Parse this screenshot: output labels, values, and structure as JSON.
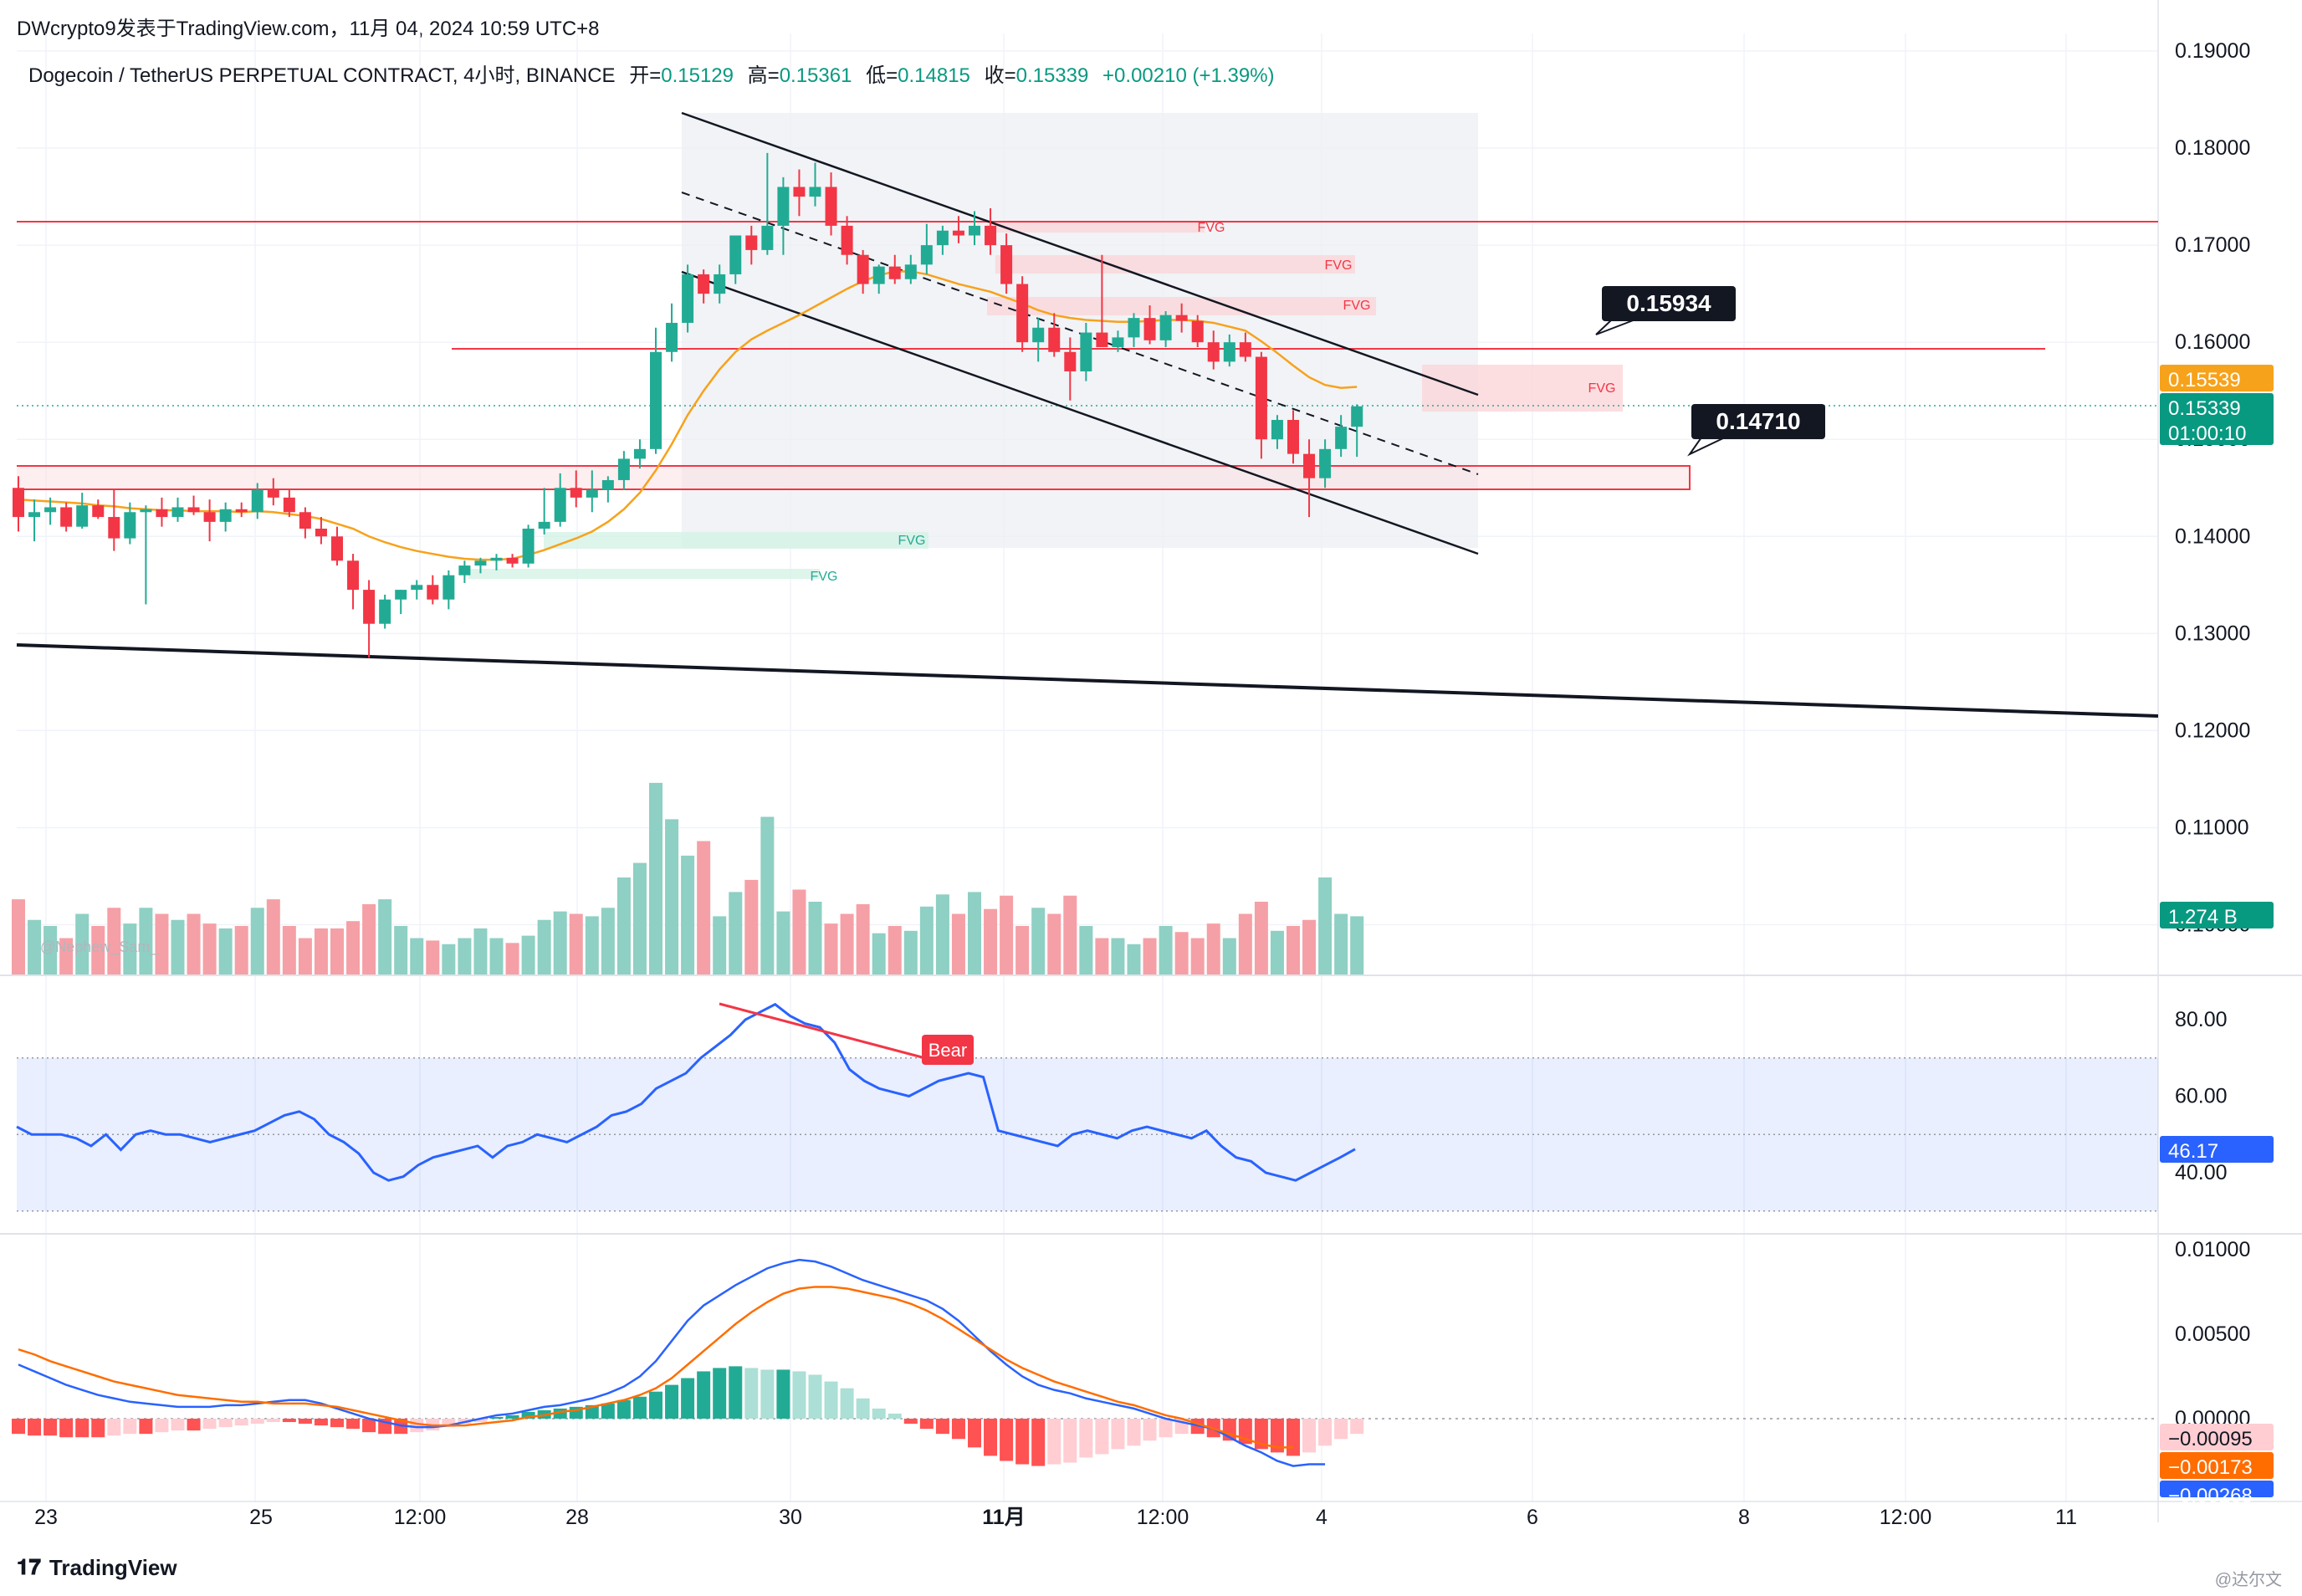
{
  "header": {
    "publisher_line": "DWcrypto9发表于TradingView.com，11月 04, 2024 10:59 UTC+8"
  },
  "legend": {
    "symbol": "Dogecoin / TetherUS PERPETUAL CONTRACT, 4小时, BINANCE",
    "open_label": "开=",
    "open_value": "0.15129",
    "high_label": "高=",
    "high_value": "0.15361",
    "low_label": "低=",
    "low_value": "0.14815",
    "close_label": "收=",
    "close_value": "0.15339",
    "change": "+0.00210 (+1.39%)"
  },
  "footer": {
    "logo_text": "TradingView",
    "watermark": "@达尔文"
  },
  "colors": {
    "up": "#22ab94",
    "down": "#f23645",
    "volume_up": "#8ed0c3",
    "volume_down": "#f5a0a6",
    "ma": "#f7a21b",
    "rsi": "#2962ff",
    "macd_fast": "#2962ff",
    "macd_signal": "#ff6d00",
    "resistance_line": "#f23645",
    "channel": "#131722",
    "fvg_red": "#fbd6d9",
    "fvg_green": "#d4f2e6",
    "current_price_badge": "#089981",
    "ma_badge": "#f7a21b"
  },
  "price_axis": {
    "ticks": [
      "0.19000",
      "0.18000",
      "0.17000",
      "0.16000",
      "0.15000",
      "0.14000",
      "0.13000",
      "0.12000",
      "0.11000",
      "0.10000"
    ],
    "price_badge": "0.15339",
    "countdown": "01:00:10",
    "ma_badge": "0.15539",
    "volume_badge": "1.274 B"
  },
  "annotations": {
    "callout_upper": "0.15934",
    "callout_lower": "0.14710",
    "fvg_label": "FVG",
    "bear_label": "Bear",
    "author_watermark": "@Nephew_Sam_"
  },
  "time_axis": {
    "labels": [
      "23",
      "25",
      "12:00",
      "28",
      "30",
      "11月",
      "12:00",
      "4",
      "6",
      "8",
      "12:00",
      "11"
    ]
  },
  "rsi_axis": {
    "ticks": [
      "80.00",
      "60.00",
      "40.00"
    ],
    "value_badge": "46.17"
  },
  "macd_axis": {
    "ticks": [
      "0.01000",
      "0.00500",
      "0.00000"
    ],
    "badge_1": "−0.00095",
    "badge_2": "−0.00173",
    "badge_3": "−0.00268"
  },
  "chart_data": [
    {
      "type": "candlestick",
      "title": "Dogecoin / TetherUS PERPETUAL CONTRACT, 4小时, BINANCE",
      "ylim": [
        0.1,
        0.19
      ],
      "x_category_labels": [
        "23",
        "25",
        "12:00",
        "28",
        "30",
        "11月",
        "12:00",
        "4"
      ],
      "candles": [
        {
          "o": 0.145,
          "h": 0.1462,
          "l": 0.1405,
          "c": 0.142
        },
        {
          "o": 0.142,
          "h": 0.1438,
          "l": 0.1395,
          "c": 0.1425
        },
        {
          "o": 0.1425,
          "h": 0.144,
          "l": 0.1412,
          "c": 0.143
        },
        {
          "o": 0.143,
          "h": 0.1435,
          "l": 0.1405,
          "c": 0.141
        },
        {
          "o": 0.141,
          "h": 0.1445,
          "l": 0.1408,
          "c": 0.1432
        },
        {
          "o": 0.1432,
          "h": 0.1438,
          "l": 0.1418,
          "c": 0.142
        },
        {
          "o": 0.142,
          "h": 0.1448,
          "l": 0.1385,
          "c": 0.1398
        },
        {
          "o": 0.1398,
          "h": 0.1435,
          "l": 0.1392,
          "c": 0.1425
        },
        {
          "o": 0.1425,
          "h": 0.1432,
          "l": 0.133,
          "c": 0.1428
        },
        {
          "o": 0.1428,
          "h": 0.144,
          "l": 0.141,
          "c": 0.142
        },
        {
          "o": 0.142,
          "h": 0.144,
          "l": 0.1415,
          "c": 0.143
        },
        {
          "o": 0.143,
          "h": 0.1442,
          "l": 0.1422,
          "c": 0.1425
        },
        {
          "o": 0.1425,
          "h": 0.1438,
          "l": 0.1395,
          "c": 0.1415
        },
        {
          "o": 0.1415,
          "h": 0.1435,
          "l": 0.1405,
          "c": 0.1428
        },
        {
          "o": 0.1428,
          "h": 0.1435,
          "l": 0.142,
          "c": 0.1425
        },
        {
          "o": 0.1425,
          "h": 0.1455,
          "l": 0.1418,
          "c": 0.1448
        },
        {
          "o": 0.1448,
          "h": 0.146,
          "l": 0.1432,
          "c": 0.144
        },
        {
          "o": 0.144,
          "h": 0.1448,
          "l": 0.142,
          "c": 0.1425
        },
        {
          "o": 0.1425,
          "h": 0.143,
          "l": 0.1398,
          "c": 0.1408
        },
        {
          "o": 0.1408,
          "h": 0.142,
          "l": 0.1392,
          "c": 0.14
        },
        {
          "o": 0.14,
          "h": 0.141,
          "l": 0.137,
          "c": 0.1375
        },
        {
          "o": 0.1375,
          "h": 0.1382,
          "l": 0.1325,
          "c": 0.1345
        },
        {
          "o": 0.1345,
          "h": 0.1355,
          "l": 0.1275,
          "c": 0.131
        },
        {
          "o": 0.131,
          "h": 0.134,
          "l": 0.1305,
          "c": 0.1335
        },
        {
          "o": 0.1335,
          "h": 0.1345,
          "l": 0.132,
          "c": 0.1345
        },
        {
          "o": 0.1345,
          "h": 0.1355,
          "l": 0.1335,
          "c": 0.135
        },
        {
          "o": 0.135,
          "h": 0.136,
          "l": 0.133,
          "c": 0.1335
        },
        {
          "o": 0.1335,
          "h": 0.1365,
          "l": 0.1325,
          "c": 0.136
        },
        {
          "o": 0.136,
          "h": 0.1375,
          "l": 0.1352,
          "c": 0.137
        },
        {
          "o": 0.137,
          "h": 0.1378,
          "l": 0.1362,
          "c": 0.1375
        },
        {
          "o": 0.1375,
          "h": 0.1382,
          "l": 0.1365,
          "c": 0.1378
        },
        {
          "o": 0.1378,
          "h": 0.1382,
          "l": 0.1368,
          "c": 0.1372
        },
        {
          "o": 0.1372,
          "h": 0.1412,
          "l": 0.1368,
          "c": 0.1408
        },
        {
          "o": 0.1408,
          "h": 0.145,
          "l": 0.1402,
          "c": 0.1415
        },
        {
          "o": 0.1415,
          "h": 0.1465,
          "l": 0.141,
          "c": 0.145
        },
        {
          "o": 0.145,
          "h": 0.1468,
          "l": 0.143,
          "c": 0.144
        },
        {
          "o": 0.144,
          "h": 0.1468,
          "l": 0.1425,
          "c": 0.1448
        },
        {
          "o": 0.1448,
          "h": 0.1462,
          "l": 0.1435,
          "c": 0.1458
        },
        {
          "o": 0.1458,
          "h": 0.1488,
          "l": 0.1448,
          "c": 0.148
        },
        {
          "o": 0.148,
          "h": 0.15,
          "l": 0.147,
          "c": 0.149
        },
        {
          "o": 0.149,
          "h": 0.1615,
          "l": 0.1485,
          "c": 0.159
        },
        {
          "o": 0.159,
          "h": 0.164,
          "l": 0.158,
          "c": 0.162
        },
        {
          "o": 0.162,
          "h": 0.168,
          "l": 0.161,
          "c": 0.167
        },
        {
          "o": 0.167,
          "h": 0.1675,
          "l": 0.164,
          "c": 0.165
        },
        {
          "o": 0.165,
          "h": 0.168,
          "l": 0.164,
          "c": 0.167
        },
        {
          "o": 0.167,
          "h": 0.171,
          "l": 0.166,
          "c": 0.171
        },
        {
          "o": 0.171,
          "h": 0.172,
          "l": 0.168,
          "c": 0.1695
        },
        {
          "o": 0.1695,
          "h": 0.1795,
          "l": 0.169,
          "c": 0.172
        },
        {
          "o": 0.172,
          "h": 0.177,
          "l": 0.169,
          "c": 0.176
        },
        {
          "o": 0.176,
          "h": 0.1778,
          "l": 0.173,
          "c": 0.175
        },
        {
          "o": 0.175,
          "h": 0.1785,
          "l": 0.174,
          "c": 0.176
        },
        {
          "o": 0.176,
          "h": 0.1775,
          "l": 0.171,
          "c": 0.172
        },
        {
          "o": 0.172,
          "h": 0.173,
          "l": 0.168,
          "c": 0.169
        },
        {
          "o": 0.169,
          "h": 0.1695,
          "l": 0.165,
          "c": 0.166
        },
        {
          "o": 0.166,
          "h": 0.168,
          "l": 0.165,
          "c": 0.1678
        },
        {
          "o": 0.1678,
          "h": 0.169,
          "l": 0.166,
          "c": 0.1665
        },
        {
          "o": 0.1665,
          "h": 0.169,
          "l": 0.166,
          "c": 0.168
        },
        {
          "o": 0.168,
          "h": 0.1722,
          "l": 0.167,
          "c": 0.17
        },
        {
          "o": 0.17,
          "h": 0.172,
          "l": 0.169,
          "c": 0.1715
        },
        {
          "o": 0.1715,
          "h": 0.173,
          "l": 0.1702,
          "c": 0.171
        },
        {
          "o": 0.171,
          "h": 0.1735,
          "l": 0.17,
          "c": 0.172
        },
        {
          "o": 0.172,
          "h": 0.1738,
          "l": 0.169,
          "c": 0.17
        },
        {
          "o": 0.17,
          "h": 0.1712,
          "l": 0.165,
          "c": 0.166
        },
        {
          "o": 0.166,
          "h": 0.1668,
          "l": 0.159,
          "c": 0.16
        },
        {
          "o": 0.16,
          "h": 0.1625,
          "l": 0.158,
          "c": 0.1615
        },
        {
          "o": 0.1615,
          "h": 0.163,
          "l": 0.1585,
          "c": 0.159
        },
        {
          "o": 0.159,
          "h": 0.1605,
          "l": 0.154,
          "c": 0.157
        },
        {
          "o": 0.157,
          "h": 0.162,
          "l": 0.156,
          "c": 0.161
        },
        {
          "o": 0.161,
          "h": 0.169,
          "l": 0.1595,
          "c": 0.1595
        },
        {
          "o": 0.1595,
          "h": 0.1612,
          "l": 0.159,
          "c": 0.1605
        },
        {
          "o": 0.1605,
          "h": 0.163,
          "l": 0.1595,
          "c": 0.1625
        },
        {
          "o": 0.1625,
          "h": 0.1638,
          "l": 0.1598,
          "c": 0.1602
        },
        {
          "o": 0.1602,
          "h": 0.1632,
          "l": 0.1595,
          "c": 0.1628
        },
        {
          "o": 0.1628,
          "h": 0.164,
          "l": 0.161,
          "c": 0.1622
        },
        {
          "o": 0.1622,
          "h": 0.1628,
          "l": 0.1595,
          "c": 0.16
        },
        {
          "o": 0.16,
          "h": 0.1612,
          "l": 0.1572,
          "c": 0.158
        },
        {
          "o": 0.158,
          "h": 0.1608,
          "l": 0.1575,
          "c": 0.16
        },
        {
          "o": 0.16,
          "h": 0.161,
          "l": 0.158,
          "c": 0.1585
        },
        {
          "o": 0.1585,
          "h": 0.159,
          "l": 0.148,
          "c": 0.15
        },
        {
          "o": 0.15,
          "h": 0.1525,
          "l": 0.149,
          "c": 0.152
        },
        {
          "o": 0.152,
          "h": 0.153,
          "l": 0.1475,
          "c": 0.1485
        },
        {
          "o": 0.1485,
          "h": 0.15,
          "l": 0.142,
          "c": 0.146
        },
        {
          "o": 0.146,
          "h": 0.15,
          "l": 0.145,
          "c": 0.149
        },
        {
          "o": 0.149,
          "h": 0.1525,
          "l": 0.1482,
          "c": 0.1513
        },
        {
          "o": 0.1513,
          "h": 0.1536,
          "l": 0.1482,
          "c": 0.1534
        }
      ],
      "ma": [
        0.1438,
        0.1437,
        0.1436,
        0.1435,
        0.1434,
        0.1432,
        0.1431,
        0.1429,
        0.1428,
        0.1427,
        0.1427,
        0.1426,
        0.1426,
        0.1426,
        0.1425,
        0.1426,
        0.1425,
        0.1423,
        0.1421,
        0.1418,
        0.1413,
        0.1408,
        0.14,
        0.1394,
        0.1389,
        0.1385,
        0.1382,
        0.1379,
        0.1377,
        0.1376,
        0.1376,
        0.1377,
        0.1381,
        0.1386,
        0.1392,
        0.1398,
        0.1405,
        0.1415,
        0.1428,
        0.1445,
        0.1468,
        0.1495,
        0.1525,
        0.155,
        0.1572,
        0.159,
        0.1603,
        0.1612,
        0.162,
        0.1628,
        0.1637,
        0.1646,
        0.1655,
        0.1663,
        0.1669,
        0.1673,
        0.1673,
        0.167,
        0.1665,
        0.166,
        0.1656,
        0.1652,
        0.1646,
        0.164,
        0.1633,
        0.1628,
        0.1625,
        0.1623,
        0.1622,
        0.1621,
        0.1621,
        0.1622,
        0.1623,
        0.1623,
        0.1622,
        0.162,
        0.1616,
        0.1612,
        0.1601,
        0.1589,
        0.1576,
        0.1564,
        0.1556,
        0.1553,
        0.1554
      ],
      "volume_direction": "up/down matches candle",
      "annotations": [
        "0.15934",
        "0.14710",
        "FVG",
        "FVG",
        "FVG",
        "FVG",
        "FVG",
        "FVG"
      ]
    },
    {
      "type": "line",
      "title": "RSI",
      "ylim": [
        20,
        90
      ],
      "bands": [
        30,
        50,
        70
      ],
      "values": [
        52,
        50,
        50,
        50,
        49,
        47,
        50,
        46,
        50,
        51,
        50,
        50,
        49,
        48,
        49,
        50,
        51,
        53,
        55,
        56,
        54,
        50,
        48,
        45,
        40,
        38,
        39,
        42,
        44,
        45,
        46,
        47,
        44,
        47,
        48,
        50,
        49,
        48,
        50,
        52,
        55,
        56,
        58,
        62,
        64,
        66,
        70,
        73,
        76,
        80,
        82,
        84,
        81,
        79,
        78,
        74,
        67,
        64,
        62,
        61,
        60,
        62,
        64,
        65,
        66,
        65,
        51,
        50,
        49,
        48,
        47,
        50,
        51,
        50,
        49,
        51,
        52,
        51,
        50,
        49,
        51,
        47,
        44,
        43,
        40,
        39,
        38,
        40,
        42,
        44,
        46.17
      ],
      "divergence_label": "Bear"
    },
    {
      "type": "bar",
      "title": "MACD",
      "ylim": [
        -0.00268,
        0.0104
      ],
      "histogram": [
        -0.0009,
        -0.001,
        -0.001,
        -0.0011,
        -0.0011,
        -0.0011,
        -0.001,
        -0.0009,
        -0.0009,
        -0.0008,
        -0.0007,
        -0.0007,
        -0.0006,
        -0.0005,
        -0.0004,
        -0.0003,
        -0.0002,
        -0.0002,
        -0.0003,
        -0.0004,
        -0.0005,
        -0.0006,
        -0.0008,
        -0.0009,
        -0.0009,
        -0.0008,
        -0.0007,
        -0.0005,
        -0.0003,
        -0.0002,
        0.0001,
        0.0002,
        0.0004,
        0.0005,
        0.0006,
        0.0007,
        0.0008,
        0.0009,
        0.0011,
        0.0013,
        0.0016,
        0.002,
        0.0024,
        0.0028,
        0.003,
        0.0031,
        0.003,
        0.0029,
        0.0029,
        0.0028,
        0.0026,
        0.0022,
        0.0018,
        0.0012,
        0.0006,
        0.0003,
        -0.0003,
        -0.0006,
        -0.0009,
        -0.0012,
        -0.0017,
        -0.0022,
        -0.0025,
        -0.0027,
        -0.0028,
        -0.0027,
        -0.0026,
        -0.0023,
        -0.0021,
        -0.0018,
        -0.0016,
        -0.0013,
        -0.0011,
        -0.0009,
        -0.0009,
        -0.0011,
        -0.0013,
        -0.0015,
        -0.0018,
        -0.002,
        -0.0022,
        -0.002,
        -0.0016,
        -0.0012,
        -0.0009
      ],
      "macd_line": [
        0.0032,
        0.0028,
        0.0024,
        0.002,
        0.0017,
        0.0014,
        0.0012,
        0.001,
        0.0009,
        0.0008,
        0.0007,
        0.0007,
        0.0007,
        0.0008,
        0.0008,
        0.0009,
        0.001,
        0.0011,
        0.0011,
        0.0009,
        0.0006,
        0.0003,
        0.0,
        -0.0002,
        -0.0004,
        -0.0005,
        -0.0005,
        -0.0004,
        -0.0002,
        0.0,
        0.0002,
        0.0003,
        0.0005,
        0.0007,
        0.0008,
        0.001,
        0.0012,
        0.0015,
        0.0019,
        0.0025,
        0.0034,
        0.0046,
        0.0058,
        0.0067,
        0.0073,
        0.0079,
        0.0084,
        0.0089,
        0.0092,
        0.0094,
        0.0093,
        0.009,
        0.0086,
        0.0082,
        0.0079,
        0.0076,
        0.0073,
        0.007,
        0.0065,
        0.0058,
        0.0049,
        0.004,
        0.0032,
        0.0025,
        0.002,
        0.0017,
        0.0015,
        0.0012,
        0.001,
        0.0008,
        0.0006,
        0.0003,
        0.0,
        -0.0002,
        -0.0004,
        -0.0006,
        -0.0011,
        -0.0016,
        -0.002,
        -0.0025,
        -0.0028,
        -0.0027,
        -0.0027
      ],
      "signal_line": [
        0.0041,
        0.0038,
        0.0034,
        0.0031,
        0.0028,
        0.0025,
        0.0022,
        0.002,
        0.0018,
        0.0016,
        0.0014,
        0.0013,
        0.0012,
        0.0011,
        0.001,
        0.001,
        0.0009,
        0.0009,
        0.0009,
        0.0008,
        0.0007,
        0.0005,
        0.0003,
        0.0001,
        -0.0001,
        -0.0003,
        -0.0004,
        -0.0004,
        -0.0004,
        -0.0003,
        -0.0002,
        -0.0001,
        0.0001,
        0.0002,
        0.0004,
        0.0005,
        0.0007,
        0.0009,
        0.0011,
        0.0014,
        0.0018,
        0.0024,
        0.0032,
        0.004,
        0.0048,
        0.0056,
        0.0063,
        0.0069,
        0.0074,
        0.0077,
        0.0078,
        0.0078,
        0.0077,
        0.0075,
        0.0073,
        0.0071,
        0.0068,
        0.0064,
        0.0059,
        0.0053,
        0.0047,
        0.0041,
        0.0035,
        0.003,
        0.0026,
        0.0022,
        0.0019,
        0.0016,
        0.0013,
        0.001,
        0.0008,
        0.0005,
        0.0002,
        0.0,
        -0.0003,
        -0.0006,
        -0.0009,
        -0.0012,
        -0.0015,
        -0.0017,
        -0.0017
      ]
    }
  ]
}
